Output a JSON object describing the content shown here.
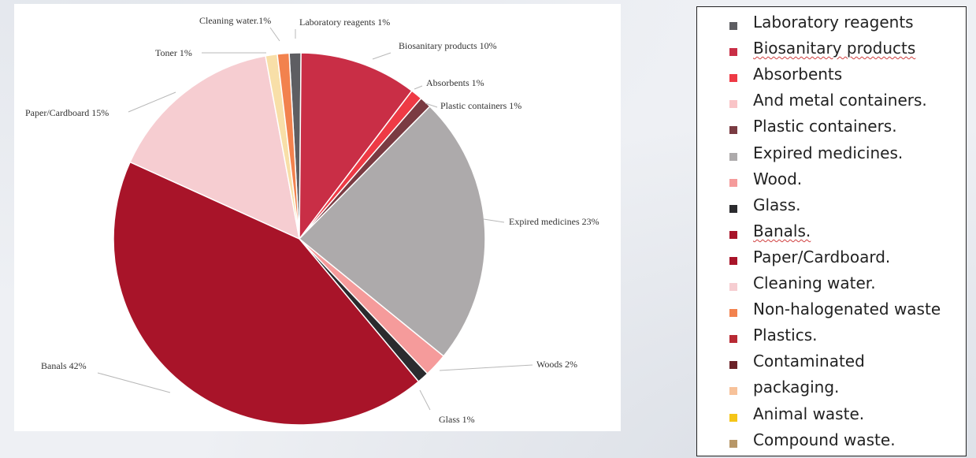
{
  "chart_data": {
    "type": "pie",
    "slices": [
      {
        "label": "Laboratory reagents 1%",
        "value": 1,
        "color": "#5e5e62"
      },
      {
        "label": "Biosanitary products 10%",
        "value": 10,
        "color": "#c92e46"
      },
      {
        "label": "Absorbents 1%",
        "value": 1,
        "color": "#ee3a45"
      },
      {
        "label": "Plastic containers 1%",
        "value": 1,
        "color": "#7a3b42"
      },
      {
        "label": "Expired medicines 23%",
        "value": 23,
        "color": "#adaaab"
      },
      {
        "label": "Woods 2%",
        "value": 2,
        "color": "#f59b9b"
      },
      {
        "label": "Glass 1%",
        "value": 1,
        "color": "#2b2b2e"
      },
      {
        "label": "Banals 42%",
        "value": 42,
        "color": "#a81429"
      },
      {
        "label": "Paper/Cardboard 15%",
        "value": 15,
        "color": "#f6cdd1"
      },
      {
        "label": "Toner 1%",
        "value": 1,
        "color": "#f8dfa8"
      },
      {
        "label": "Cleaning water.1%",
        "value": 1,
        "color": "#f2824e"
      }
    ],
    "legend_placement": "right"
  },
  "legend": {
    "items": [
      {
        "text": "Laboratory reagents",
        "color": "#5e5e62",
        "squiggle": false
      },
      {
        "text": "Biosanitary products",
        "color": "#c92e46",
        "squiggle": true
      },
      {
        "text": "Absorbents",
        "color": "#ee3a45",
        "squiggle": false
      },
      {
        "text": "And metal containers.",
        "color": "#f9c4c7",
        "squiggle": false
      },
      {
        "text": "Plastic containers.",
        "color": "#7a3b42",
        "squiggle": false
      },
      {
        "text": "Expired medicines.",
        "color": "#adaaab",
        "squiggle": false
      },
      {
        "text": "Wood.",
        "color": "#f59b9b",
        "squiggle": false
      },
      {
        "text": "Glass.",
        "color": "#2b2b2e",
        "squiggle": false
      },
      {
        "text": "Banals.",
        "color": "#a81429",
        "squiggle": true
      },
      {
        "text": "Paper/Cardboard.",
        "color": "#a81429",
        "squiggle": false
      },
      {
        "text": "Cleaning water.",
        "color": "#f6cdd1",
        "squiggle": false
      },
      {
        "text": "Non-halogenated waste",
        "color": "#f2824e",
        "squiggle": false
      },
      {
        "text": "Plastics.",
        "color": "#b82a34",
        "squiggle": false
      },
      {
        "text": "Contaminated",
        "color": "#6b2228",
        "squiggle": false
      },
      {
        "text": "packaging.",
        "color": "#f7c29a",
        "squiggle": false
      },
      {
        "text": "Animal waste.",
        "color": "#f5c518",
        "squiggle": false
      },
      {
        "text": "Compound waste.",
        "color": "#b79768",
        "squiggle": false
      }
    ]
  }
}
